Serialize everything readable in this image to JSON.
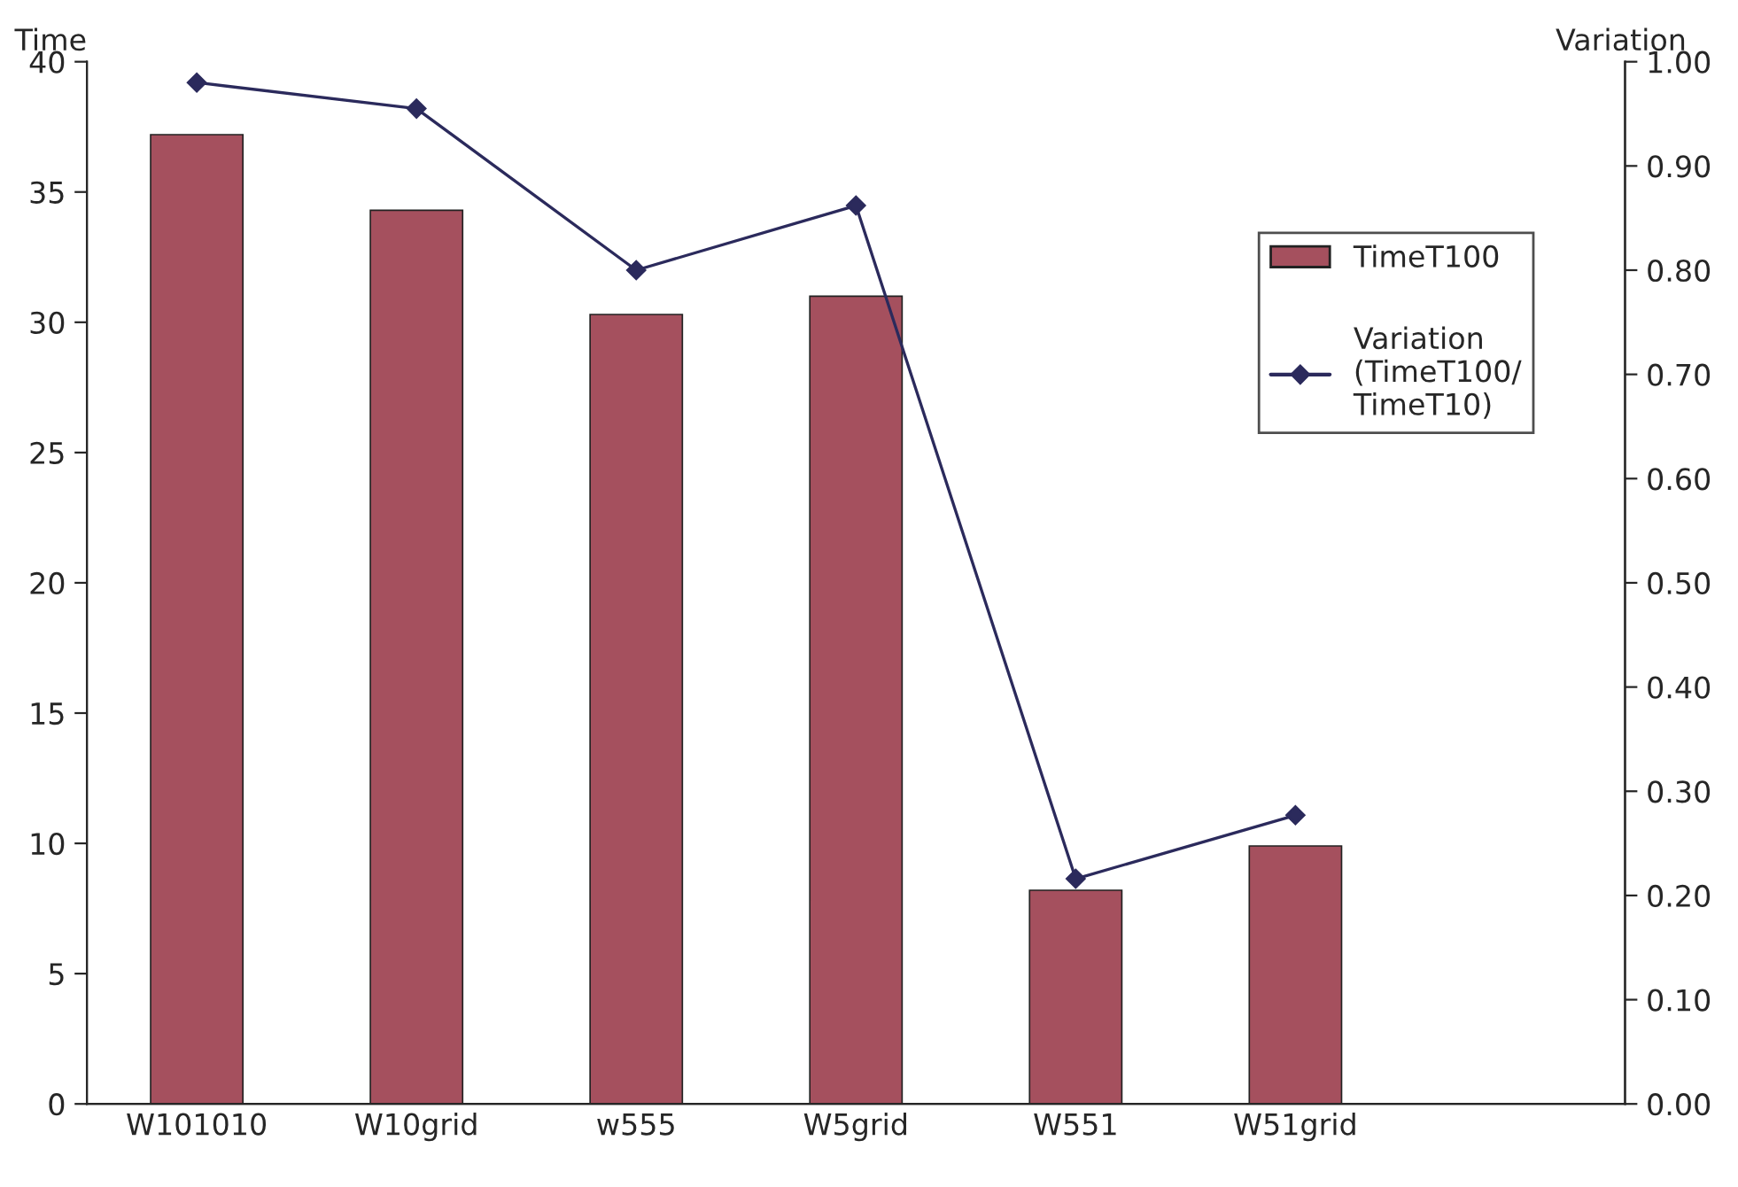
{
  "chart_data": {
    "type": "bar",
    "categories": [
      "W101010",
      "W10grid",
      "w555",
      "W5grid",
      "W551",
      "W51grid",
      null
    ],
    "ylabel": "Time",
    "y2label": "Variation",
    "series": [
      {
        "name": "TimeT100",
        "color": "#a5505e",
        "values": [
          37.2,
          34.3,
          30.3,
          31.0,
          8.2,
          9.9,
          null
        ]
      },
      {
        "name": "Variation\n(TimeT100/\nTimeT10)",
        "type": "line",
        "axis": "y2",
        "color": "#2b2a5c",
        "marker": "diamond",
        "values": [
          0.98,
          0.955,
          0.8,
          0.862,
          0.216,
          0.277,
          null
        ]
      }
    ],
    "ylim": [
      0,
      40
    ],
    "yticks": [
      0,
      5,
      10,
      15,
      20,
      25,
      30,
      35,
      40
    ],
    "y2lim": [
      0,
      1
    ],
    "y2ticks": [
      {
        "value": 0,
        "label": "0.00"
      },
      {
        "value": 0.1,
        "label": "0.10"
      },
      {
        "value": 0.2,
        "label": "0.20"
      },
      {
        "value": 0.3,
        "label": "0.30"
      },
      {
        "value": 0.4,
        "label": "0.40"
      },
      {
        "value": 0.5,
        "label": "0.50"
      },
      {
        "value": 0.6,
        "label": "0.60"
      },
      {
        "value": 0.7,
        "label": "0.70"
      },
      {
        "value": 0.8,
        "label": "0.80"
      },
      {
        "value": 0.9,
        "label": "0.90"
      },
      {
        "value": 1.0,
        "label": "1.00"
      }
    ],
    "legend": "top right",
    "grid": false
  }
}
